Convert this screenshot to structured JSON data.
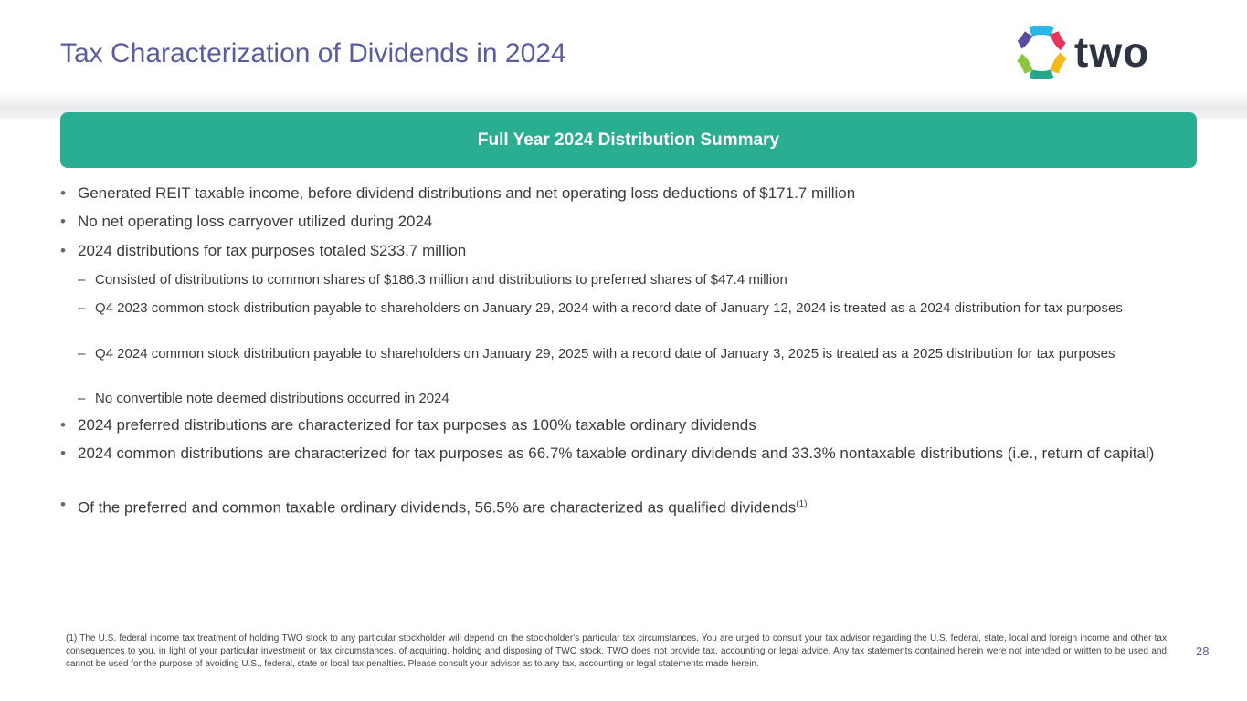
{
  "header": {
    "title": "Tax Characterization of Dividends in 2024",
    "logo_text": "two",
    "page_number": "28"
  },
  "banner": {
    "label": "Full Year 2024 Distribution Summary"
  },
  "bullets": [
    "Generated REIT taxable income, before dividend distributions and net operating loss deductions of $171.7 million",
    "No net operating loss carryover utilized during 2024",
    "2024 distributions for tax purposes totaled $233.7 million"
  ],
  "sub_bullets": [
    "Consisted of distributions to common shares of $186.3 million and distributions to preferred shares of $47.4 million",
    "Q4 2023 common stock distribution payable to shareholders on January 29, 2024 with a record date of January 12, 2024 is treated as a 2024 distribution for tax purposes",
    "Q4 2024 common stock distribution payable to shareholders on January 29, 2025 with a record date of January 3, 2025 is treated as a 2025 distribution for tax purposes",
    "No convertible note deemed distributions occurred in 2024"
  ],
  "bullets2": [
    "2024 preferred distributions are characterized for tax purposes as 100% taxable ordinary dividends",
    "2024 common distributions are characterized for tax purposes as 66.7% taxable ordinary dividends and 33.3% nontaxable distributions (i.e., return of capital)",
    "Of the preferred and common taxable ordinary dividends, 56.5% are characterized as qualified dividends"
  ],
  "footnote_marker": "(1)",
  "footnote": "(1) The U.S. federal income tax treatment of holding TWO stock to any particular stockholder will depend on the stockholder's particular tax circumstances. You are urged to consult your tax advisor regarding the U.S. federal, state, local and foreign income and other tax consequences to you, in light of your particular investment or tax circumstances, of acquiring, holding and disposing of TWO stock. TWO does not provide tax, accounting or legal advice. Any tax statements contained herein were not intended or written to be used and cannot be used for the purpose of avoiding U.S., federal, state or local tax penalties. Please consult your advisor as to any tax, accounting or legal statements made herein.",
  "colors": {
    "title": "#5b5c9f",
    "banner": "#2aae91"
  }
}
